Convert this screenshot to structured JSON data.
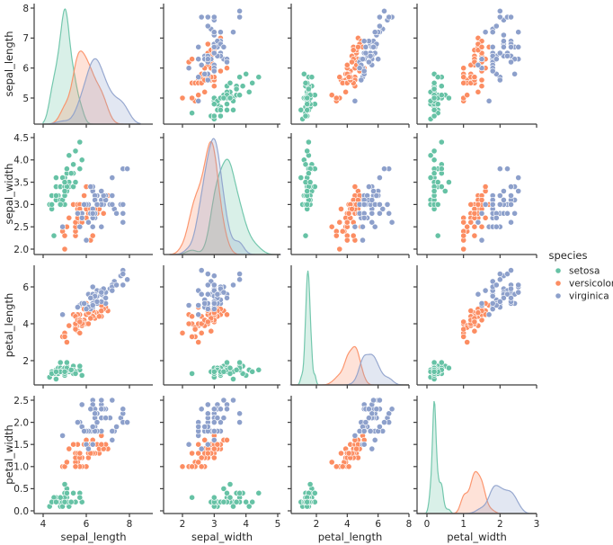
{
  "chart_data": {
    "type": "scatter",
    "subtype": "pairplot",
    "title": "",
    "variables": [
      "sepal_length",
      "sepal_width",
      "petal_length",
      "petal_width"
    ],
    "diagonal": "kde",
    "offdiagonal": "scatter",
    "hue": "species",
    "legend": {
      "title": "species",
      "placement": "right",
      "entries": [
        "setosa",
        "versicolor",
        "virginica"
      ]
    },
    "colors": {
      "setosa": "#66c2a5",
      "versicolor": "#fc8d62",
      "virginica": "#8da0cb"
    },
    "axes": {
      "sepal_length": {
        "range": [
          4.0,
          8.5
        ],
        "ticks": [
          4,
          6,
          8
        ],
        "y_range": [
          4.1,
          8.0
        ],
        "y_ticks": [
          5,
          6,
          7,
          8
        ]
      },
      "sepal_width": {
        "range": [
          1.6,
          5.1
        ],
        "ticks": [
          2,
          3,
          4,
          5
        ],
        "y_range": [
          1.9,
          4.6
        ],
        "y_ticks": [
          2.0,
          2.5,
          3.0,
          3.5,
          4.0,
          4.5
        ],
        "y_tick_labels": [
          "2.0",
          "2.5",
          "3.0",
          "3.5",
          "4.0",
          "4.5"
        ]
      },
      "petal_length": {
        "range": [
          0.3,
          8.0
        ],
        "ticks": [
          2,
          4,
          6,
          8
        ],
        "y_range": [
          0.7,
          7.2
        ],
        "y_ticks": [
          2,
          4,
          6
        ]
      },
      "petal_width": {
        "range": [
          -0.3,
          3.0
        ],
        "ticks": [
          0,
          1,
          2,
          3
        ],
        "y_range": [
          -0.05,
          2.65
        ],
        "y_ticks": [
          0.0,
          0.5,
          1.0,
          1.5,
          2.0,
          2.5
        ],
        "y_tick_labels": [
          "0.0",
          "0.5",
          "1.0",
          "1.5",
          "2.0",
          "2.5"
        ]
      }
    },
    "data": {
      "setosa": [
        [
          5.1,
          3.5,
          1.4,
          0.2
        ],
        [
          4.9,
          3.0,
          1.4,
          0.2
        ],
        [
          4.7,
          3.2,
          1.3,
          0.2
        ],
        [
          4.6,
          3.1,
          1.5,
          0.2
        ],
        [
          5.0,
          3.6,
          1.4,
          0.2
        ],
        [
          5.4,
          3.9,
          1.7,
          0.4
        ],
        [
          4.6,
          3.4,
          1.4,
          0.3
        ],
        [
          5.0,
          3.4,
          1.5,
          0.2
        ],
        [
          4.4,
          2.9,
          1.4,
          0.2
        ],
        [
          4.9,
          3.1,
          1.5,
          0.1
        ],
        [
          5.4,
          3.7,
          1.5,
          0.2
        ],
        [
          4.8,
          3.4,
          1.6,
          0.2
        ],
        [
          4.8,
          3.0,
          1.4,
          0.1
        ],
        [
          4.3,
          3.0,
          1.1,
          0.1
        ],
        [
          5.8,
          4.0,
          1.2,
          0.2
        ],
        [
          5.7,
          4.4,
          1.5,
          0.4
        ],
        [
          5.4,
          3.9,
          1.3,
          0.4
        ],
        [
          5.1,
          3.5,
          1.4,
          0.3
        ],
        [
          5.7,
          3.8,
          1.7,
          0.3
        ],
        [
          5.1,
          3.8,
          1.5,
          0.3
        ],
        [
          5.4,
          3.4,
          1.7,
          0.2
        ],
        [
          5.1,
          3.7,
          1.5,
          0.4
        ],
        [
          4.6,
          3.6,
          1.0,
          0.2
        ],
        [
          5.1,
          3.3,
          1.7,
          0.5
        ],
        [
          4.8,
          3.4,
          1.9,
          0.2
        ],
        [
          5.0,
          3.0,
          1.6,
          0.2
        ],
        [
          5.0,
          3.4,
          1.6,
          0.4
        ],
        [
          5.2,
          3.5,
          1.5,
          0.2
        ],
        [
          5.2,
          3.4,
          1.4,
          0.2
        ],
        [
          4.7,
          3.2,
          1.6,
          0.2
        ],
        [
          4.8,
          3.1,
          1.6,
          0.2
        ],
        [
          5.4,
          3.4,
          1.5,
          0.4
        ],
        [
          5.2,
          4.1,
          1.5,
          0.1
        ],
        [
          5.5,
          4.2,
          1.4,
          0.2
        ],
        [
          4.9,
          3.1,
          1.5,
          0.2
        ],
        [
          5.0,
          3.2,
          1.2,
          0.2
        ],
        [
          5.5,
          3.5,
          1.3,
          0.2
        ],
        [
          4.9,
          3.6,
          1.4,
          0.1
        ],
        [
          4.4,
          3.0,
          1.3,
          0.2
        ],
        [
          5.1,
          3.4,
          1.5,
          0.2
        ],
        [
          5.0,
          3.5,
          1.3,
          0.3
        ],
        [
          4.5,
          2.3,
          1.3,
          0.3
        ],
        [
          4.4,
          3.2,
          1.3,
          0.2
        ],
        [
          5.0,
          3.5,
          1.6,
          0.6
        ],
        [
          5.1,
          3.8,
          1.9,
          0.4
        ],
        [
          4.8,
          3.0,
          1.4,
          0.3
        ],
        [
          5.1,
          3.8,
          1.6,
          0.2
        ],
        [
          4.6,
          3.2,
          1.4,
          0.2
        ],
        [
          5.3,
          3.7,
          1.5,
          0.2
        ],
        [
          5.0,
          3.3,
          1.4,
          0.2
        ]
      ],
      "versicolor": [
        [
          7.0,
          3.2,
          4.7,
          1.4
        ],
        [
          6.4,
          3.2,
          4.5,
          1.5
        ],
        [
          6.9,
          3.1,
          4.9,
          1.5
        ],
        [
          5.5,
          2.3,
          4.0,
          1.3
        ],
        [
          6.5,
          2.8,
          4.6,
          1.5
        ],
        [
          5.7,
          2.8,
          4.5,
          1.3
        ],
        [
          6.3,
          3.3,
          4.7,
          1.6
        ],
        [
          4.9,
          2.4,
          3.3,
          1.0
        ],
        [
          6.6,
          2.9,
          4.6,
          1.3
        ],
        [
          5.2,
          2.7,
          3.9,
          1.4
        ],
        [
          5.0,
          2.0,
          3.5,
          1.0
        ],
        [
          5.9,
          3.0,
          4.2,
          1.5
        ],
        [
          6.0,
          2.2,
          4.0,
          1.0
        ],
        [
          6.1,
          2.9,
          4.7,
          1.4
        ],
        [
          5.6,
          2.9,
          3.6,
          1.3
        ],
        [
          6.7,
          3.1,
          4.4,
          1.4
        ],
        [
          5.6,
          3.0,
          4.5,
          1.5
        ],
        [
          5.8,
          2.7,
          4.1,
          1.0
        ],
        [
          6.2,
          2.2,
          4.5,
          1.5
        ],
        [
          5.6,
          2.5,
          3.9,
          1.1
        ],
        [
          5.9,
          3.2,
          4.8,
          1.8
        ],
        [
          6.1,
          2.8,
          4.0,
          1.3
        ],
        [
          6.3,
          2.5,
          4.9,
          1.5
        ],
        [
          6.1,
          2.8,
          4.7,
          1.2
        ],
        [
          6.4,
          2.9,
          4.3,
          1.3
        ],
        [
          6.6,
          3.0,
          4.4,
          1.4
        ],
        [
          6.8,
          2.8,
          4.8,
          1.4
        ],
        [
          6.7,
          3.0,
          5.0,
          1.7
        ],
        [
          6.0,
          2.9,
          4.5,
          1.5
        ],
        [
          5.7,
          2.6,
          3.5,
          1.0
        ],
        [
          5.5,
          2.4,
          3.8,
          1.1
        ],
        [
          5.5,
          2.4,
          3.7,
          1.0
        ],
        [
          5.8,
          2.7,
          3.9,
          1.2
        ],
        [
          6.0,
          2.7,
          5.1,
          1.6
        ],
        [
          5.4,
          3.0,
          4.5,
          1.5
        ],
        [
          6.0,
          3.4,
          4.5,
          1.6
        ],
        [
          6.7,
          3.1,
          4.7,
          1.5
        ],
        [
          6.3,
          2.3,
          4.4,
          1.3
        ],
        [
          5.6,
          3.0,
          4.1,
          1.3
        ],
        [
          5.5,
          2.5,
          4.0,
          1.3
        ],
        [
          5.5,
          2.6,
          4.4,
          1.2
        ],
        [
          6.1,
          3.0,
          4.6,
          1.4
        ],
        [
          5.8,
          2.6,
          4.0,
          1.2
        ],
        [
          5.0,
          2.3,
          3.3,
          1.0
        ],
        [
          5.6,
          2.7,
          4.2,
          1.3
        ],
        [
          5.7,
          3.0,
          4.2,
          1.2
        ],
        [
          5.7,
          2.9,
          4.2,
          1.3
        ],
        [
          6.2,
          2.9,
          4.3,
          1.3
        ],
        [
          5.1,
          2.5,
          3.0,
          1.1
        ],
        [
          5.7,
          2.8,
          4.1,
          1.3
        ]
      ],
      "virginica": [
        [
          6.3,
          3.3,
          6.0,
          2.5
        ],
        [
          5.8,
          2.7,
          5.1,
          1.9
        ],
        [
          7.1,
          3.0,
          5.9,
          2.1
        ],
        [
          6.3,
          2.9,
          5.6,
          1.8
        ],
        [
          6.5,
          3.0,
          5.8,
          2.2
        ],
        [
          7.6,
          3.0,
          6.6,
          2.1
        ],
        [
          4.9,
          2.5,
          4.5,
          1.7
        ],
        [
          7.3,
          2.9,
          6.3,
          1.8
        ],
        [
          6.7,
          2.5,
          5.8,
          1.8
        ],
        [
          7.2,
          3.6,
          6.1,
          2.5
        ],
        [
          6.5,
          3.2,
          5.1,
          2.0
        ],
        [
          6.4,
          2.7,
          5.3,
          1.9
        ],
        [
          6.8,
          3.0,
          5.5,
          2.1
        ],
        [
          5.7,
          2.5,
          5.0,
          2.0
        ],
        [
          5.8,
          2.8,
          5.1,
          2.4
        ],
        [
          6.4,
          3.2,
          5.3,
          2.3
        ],
        [
          6.5,
          3.0,
          5.5,
          1.8
        ],
        [
          7.7,
          3.8,
          6.7,
          2.2
        ],
        [
          7.7,
          2.6,
          6.9,
          2.3
        ],
        [
          6.0,
          2.2,
          5.0,
          1.5
        ],
        [
          6.9,
          3.2,
          5.7,
          2.3
        ],
        [
          5.6,
          2.8,
          4.9,
          2.0
        ],
        [
          7.7,
          2.8,
          6.7,
          2.0
        ],
        [
          6.3,
          2.7,
          4.9,
          1.8
        ],
        [
          6.7,
          3.3,
          5.7,
          2.1
        ],
        [
          7.2,
          3.2,
          6.0,
          1.8
        ],
        [
          6.2,
          2.8,
          4.8,
          1.8
        ],
        [
          6.1,
          3.0,
          4.9,
          1.8
        ],
        [
          6.4,
          2.8,
          5.6,
          2.1
        ],
        [
          7.2,
          3.0,
          5.8,
          1.6
        ],
        [
          7.4,
          2.8,
          6.1,
          1.9
        ],
        [
          7.9,
          3.8,
          6.4,
          2.0
        ],
        [
          6.4,
          2.8,
          5.6,
          2.2
        ],
        [
          6.3,
          2.8,
          5.1,
          1.5
        ],
        [
          6.1,
          2.6,
          5.6,
          1.4
        ],
        [
          7.7,
          3.0,
          6.1,
          2.3
        ],
        [
          6.3,
          3.4,
          5.6,
          2.4
        ],
        [
          6.4,
          3.1,
          5.5,
          1.8
        ],
        [
          6.0,
          3.0,
          4.8,
          1.8
        ],
        [
          6.9,
          3.1,
          5.4,
          2.1
        ],
        [
          6.7,
          3.1,
          5.6,
          2.4
        ],
        [
          6.9,
          3.1,
          5.1,
          2.3
        ],
        [
          5.8,
          2.7,
          5.1,
          1.9
        ],
        [
          6.8,
          3.2,
          5.9,
          2.3
        ],
        [
          6.7,
          3.3,
          5.7,
          2.5
        ],
        [
          6.7,
          3.0,
          5.2,
          2.3
        ],
        [
          6.3,
          2.5,
          5.0,
          1.9
        ],
        [
          6.5,
          3.0,
          5.2,
          2.0
        ],
        [
          6.2,
          3.4,
          5.4,
          2.3
        ],
        [
          5.9,
          3.0,
          5.1,
          1.8
        ]
      ]
    }
  }
}
